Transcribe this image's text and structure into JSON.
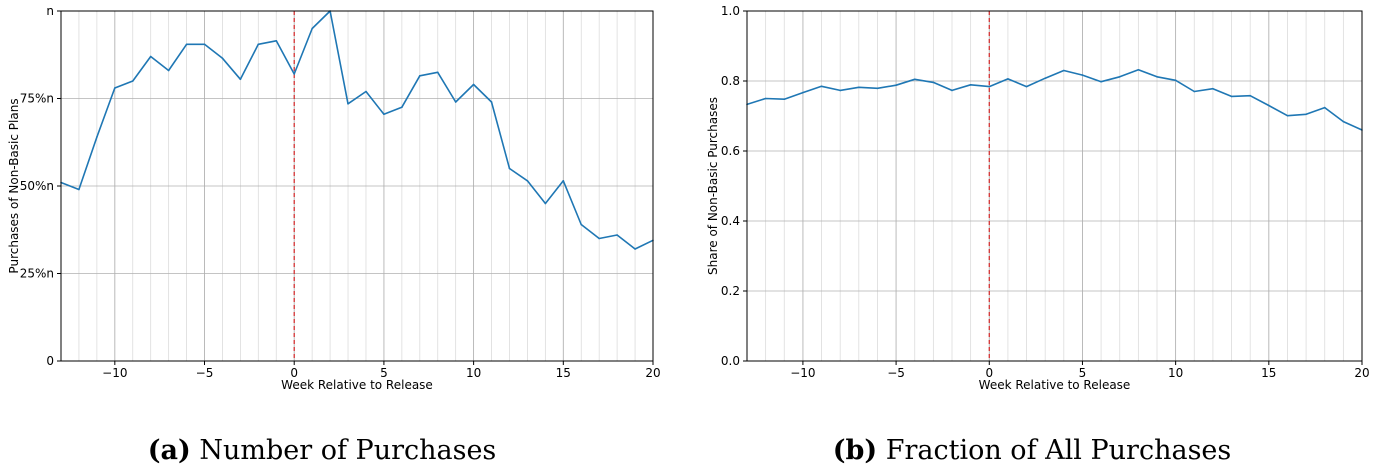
{
  "chart_data": [
    {
      "id": "a",
      "type": "line",
      "caption_label": "(a)",
      "caption_text": "Number of Purchases",
      "xlabel": "Week Relative to Release",
      "ylabel": "Purchases of Non-Basic Plans",
      "xlim": [
        -13,
        20
      ],
      "ylim": [
        0,
        1
      ],
      "x_ticks": [
        {
          "value": -10,
          "label": "−10"
        },
        {
          "value": -5,
          "label": "−5"
        },
        {
          "value": 0,
          "label": "0"
        },
        {
          "value": 5,
          "label": "5"
        },
        {
          "value": 10,
          "label": "10"
        },
        {
          "value": 15,
          "label": "15"
        },
        {
          "value": 20,
          "label": "20"
        }
      ],
      "y_ticks": [
        {
          "value": 0,
          "label": "0"
        },
        {
          "value": 0.25,
          "label": "25%n"
        },
        {
          "value": 0.5,
          "label": "50%n"
        },
        {
          "value": 0.75,
          "label": "75%n"
        },
        {
          "value": 1.0,
          "label": "n"
        }
      ],
      "grid": true,
      "minor_x_grid_step": 1,
      "vline": {
        "x": 0,
        "color": "#d62728",
        "style": "dashed"
      },
      "line_color": "#1f77b4",
      "x": [
        -13,
        -12,
        -11,
        -10,
        -9,
        -8,
        -7,
        -6,
        -5,
        -4,
        -3,
        -2,
        -1,
        0,
        1,
        2,
        3,
        4,
        5,
        6,
        7,
        8,
        9,
        10,
        11,
        12,
        13,
        14,
        15,
        16,
        17,
        18,
        19,
        20
      ],
      "y": [
        0.51,
        0.49,
        0.64,
        0.78,
        0.8,
        0.87,
        0.83,
        0.905,
        0.905,
        0.865,
        0.805,
        0.905,
        0.915,
        0.82,
        0.95,
        1.0,
        0.735,
        0.77,
        0.705,
        0.725,
        0.815,
        0.825,
        0.74,
        0.79,
        0.74,
        0.55,
        0.515,
        0.45,
        0.515,
        0.39,
        0.35,
        0.36,
        0.32,
        0.345
      ]
    },
    {
      "id": "b",
      "type": "line",
      "caption_label": "(b)",
      "caption_text": "Fraction of All Purchases",
      "xlabel": "Week Relative to Release",
      "ylabel": "Share of Non-Basic Purchases",
      "xlim": [
        -13,
        20
      ],
      "ylim": [
        0,
        1
      ],
      "x_ticks": [
        {
          "value": -10,
          "label": "−10"
        },
        {
          "value": -5,
          "label": "−5"
        },
        {
          "value": 0,
          "label": "0"
        },
        {
          "value": 5,
          "label": "5"
        },
        {
          "value": 10,
          "label": "10"
        },
        {
          "value": 15,
          "label": "15"
        },
        {
          "value": 20,
          "label": "20"
        }
      ],
      "y_ticks": [
        {
          "value": 0,
          "label": "0.0"
        },
        {
          "value": 0.2,
          "label": "0.2"
        },
        {
          "value": 0.4,
          "label": "0.4"
        },
        {
          "value": 0.6,
          "label": "0.6"
        },
        {
          "value": 0.8,
          "label": "0.8"
        },
        {
          "value": 1.0,
          "label": "1.0"
        }
      ],
      "grid": true,
      "minor_x_grid_step": 1,
      "vline": {
        "x": 0,
        "color": "#d62728",
        "style": "dashed"
      },
      "line_color": "#1f77b4",
      "x": [
        -13,
        -12,
        -11,
        -10,
        -9,
        -8,
        -7,
        -6,
        -5,
        -4,
        -3,
        -2,
        -1,
        0,
        1,
        2,
        3,
        4,
        5,
        6,
        7,
        8,
        9,
        10,
        11,
        12,
        13,
        14,
        15,
        16,
        17,
        18,
        19,
        20
      ],
      "y": [
        0.733,
        0.75,
        0.748,
        0.767,
        0.785,
        0.773,
        0.782,
        0.779,
        0.788,
        0.805,
        0.796,
        0.773,
        0.789,
        0.784,
        0.806,
        0.784,
        0.808,
        0.83,
        0.817,
        0.798,
        0.812,
        0.832,
        0.812,
        0.802,
        0.77,
        0.778,
        0.756,
        0.758,
        0.73,
        0.701,
        0.705,
        0.724,
        0.684,
        0.66
      ]
    }
  ]
}
